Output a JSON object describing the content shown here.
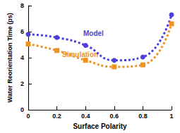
{
  "chart_data": {
    "type": "line",
    "x_label": "Surface Polarity",
    "y_label": "Water Reorientation Time (ps)",
    "x": [
      0,
      0.2,
      0.4,
      0.6,
      0.8,
      1
    ],
    "series": [
      {
        "name": "Model",
        "color": "#4b3fd8",
        "marker": "circle",
        "line_style": "dotted",
        "values": [
          5.8,
          5.55,
          4.95,
          3.8,
          4.05,
          7.3
        ]
      },
      {
        "name": "Simulation",
        "color": "#f0921e",
        "marker": "square",
        "line_style": "dotted",
        "values": [
          5.05,
          4.55,
          3.8,
          3.3,
          3.45,
          6.6
        ]
      }
    ],
    "xlim": [
      0,
      1
    ],
    "xticks": [
      0,
      0.2,
      0.4,
      0.6,
      0.8,
      1
    ],
    "ylim": [
      0,
      8
    ],
    "yticks": [
      0,
      2,
      4,
      6,
      8
    ],
    "grid": false
  }
}
